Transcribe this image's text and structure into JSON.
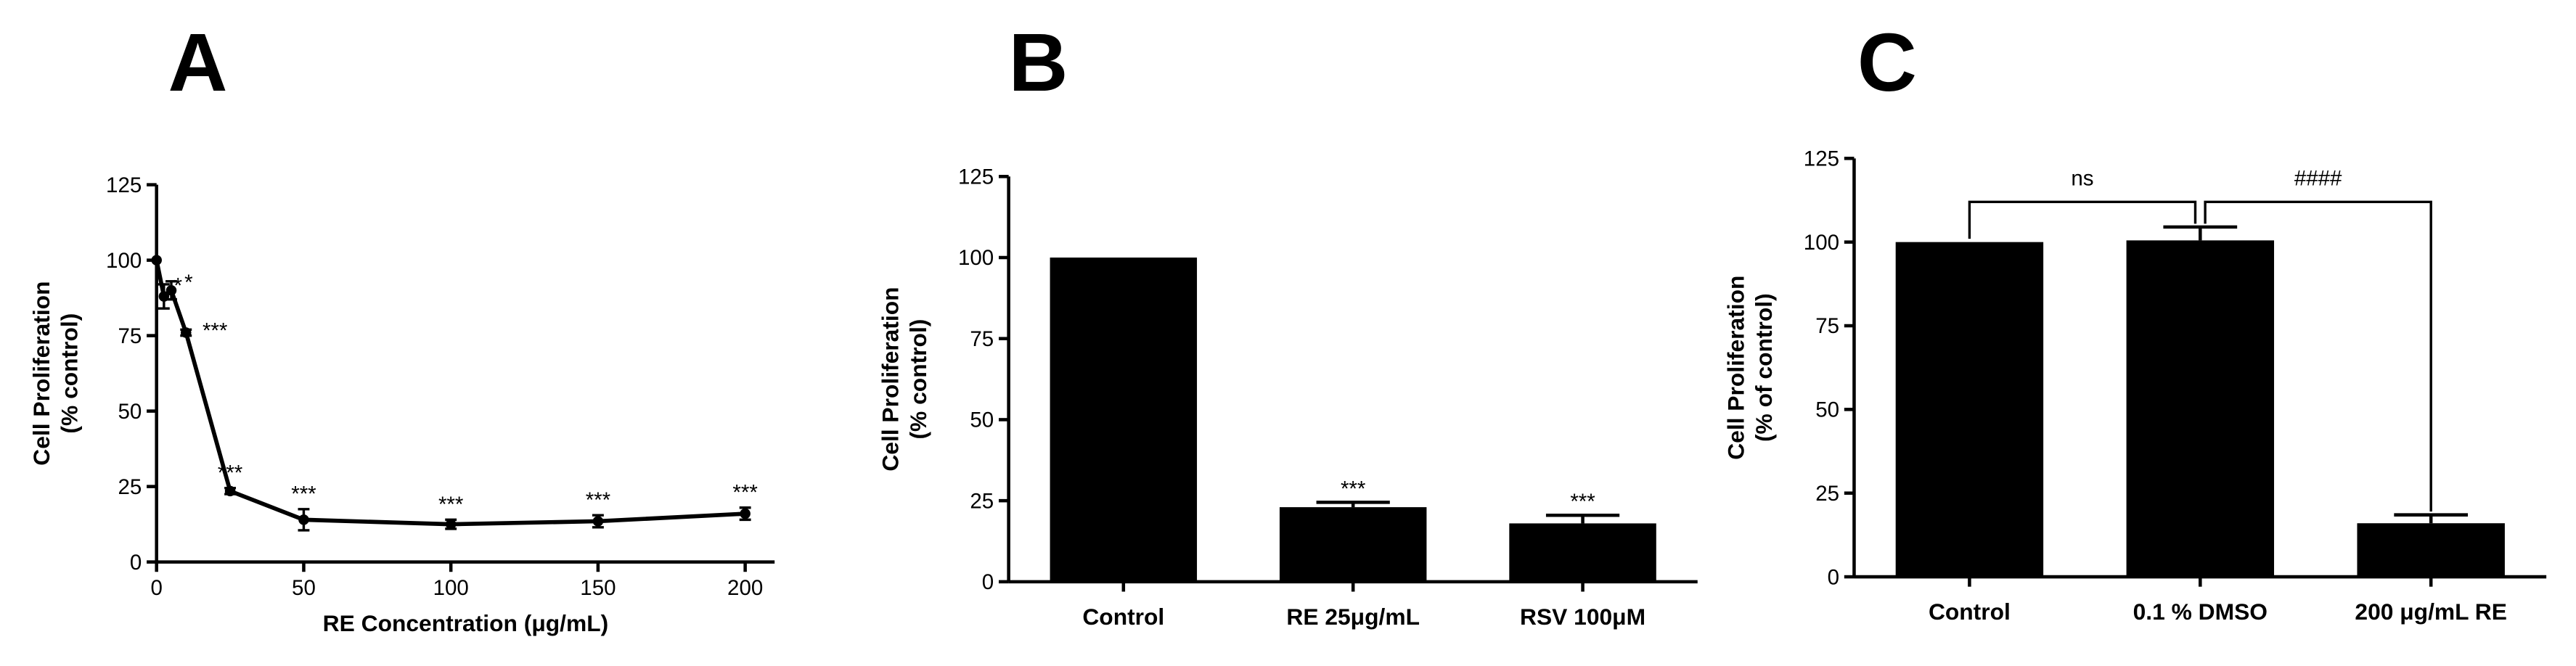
{
  "chart_data": [
    {
      "type": "line",
      "panel": "A",
      "x": [
        0,
        2.5,
        5,
        10,
        25,
        50,
        100,
        150,
        200
      ],
      "values": [
        100,
        88,
        90,
        76,
        23.5,
        14,
        12.5,
        13.5,
        16
      ],
      "errors": [
        0,
        4,
        3,
        1,
        1,
        3.5,
        1.5,
        2,
        2
      ],
      "point_labels": [
        null,
        "*",
        "*",
        "***",
        "***",
        "***",
        "***",
        "***",
        "***"
      ],
      "xlim": [
        0,
        210
      ],
      "xticks": [
        0,
        50,
        100,
        150,
        200
      ],
      "ylim": [
        0,
        125
      ],
      "yticks": [
        0,
        25,
        50,
        75,
        100,
        125
      ],
      "xlabel": "RE Concentration (μg/mL)",
      "ylabel": [
        "Cell  Proliferation",
        "(% control)"
      ],
      "color": "#000000"
    },
    {
      "type": "bar",
      "panel": "B",
      "categories": [
        "Control",
        "RE 25μg/mL",
        "RSV 100μM"
      ],
      "values": [
        100,
        23,
        18
      ],
      "errors": [
        0,
        1.5,
        2.5
      ],
      "point_labels": [
        null,
        "***",
        "***"
      ],
      "ylim": [
        0,
        125
      ],
      "yticks": [
        0,
        25,
        50,
        75,
        100,
        125
      ],
      "ylabel": [
        "Cell Proliferation",
        "(% control)"
      ],
      "color": "#000000"
    },
    {
      "type": "bar",
      "panel": "C",
      "categories": [
        "Control",
        "0.1 % DMSO",
        "200 μg/mL RE"
      ],
      "values": [
        100,
        100.5,
        16
      ],
      "errors": [
        0,
        4,
        2.5
      ],
      "comparisons": [
        {
          "label": "ns",
          "pair": [
            0,
            1
          ],
          "y": 112
        },
        {
          "label": "####",
          "pair": [
            1,
            2
          ],
          "y": 112
        }
      ],
      "ylim": [
        0,
        125
      ],
      "yticks": [
        0,
        25,
        50,
        75,
        100,
        125
      ],
      "ylabel": [
        "Cell Proliferation",
        "(% of control)"
      ],
      "color": "#000000"
    }
  ]
}
